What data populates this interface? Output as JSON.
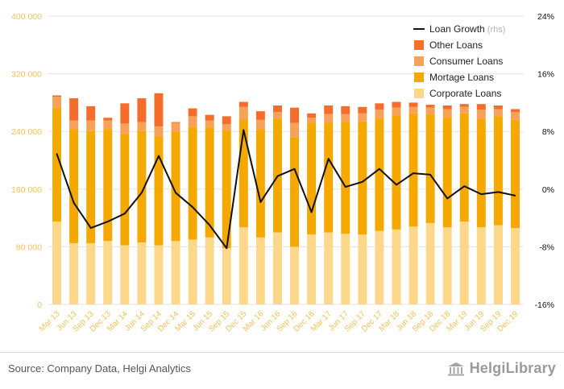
{
  "chart_data": {
    "type": "bar",
    "stacked": true,
    "categories": [
      "Mar 13",
      "Jun 13",
      "Sep 13",
      "Dec 13",
      "Mar 14",
      "Jun 14",
      "Sep 14",
      "Dec 14",
      "Mar 15",
      "Jun 15",
      "Sep 15",
      "Dec 15",
      "Mar 16",
      "Jun 16",
      "Sep 16",
      "Dec 16",
      "Mar 17",
      "Jun 17",
      "Sep 17",
      "Dec 17",
      "Mar 18",
      "Jun 18",
      "Sep 18",
      "Dec 18",
      "Mar 19",
      "Jun 19",
      "Sep 19",
      "Dec 19"
    ],
    "series": [
      {
        "name": "Corporate Loans",
        "color": "#fdd78a",
        "values": [
          115000,
          85000,
          85000,
          88000,
          82000,
          86000,
          82000,
          88000,
          90000,
          93000,
          78000,
          107000,
          93000,
          100000,
          80000,
          97000,
          100000,
          98000,
          97000,
          102000,
          104000,
          108000,
          113000,
          107000,
          115000,
          107000,
          110000,
          106000
        ]
      },
      {
        "name": "Mortage Loans",
        "color": "#f5a800",
        "values": [
          158000,
          158000,
          156000,
          155000,
          155000,
          155000,
          151000,
          152000,
          156000,
          153000,
          164000,
          150000,
          150000,
          157000,
          152000,
          155000,
          152000,
          155000,
          157000,
          156000,
          158000,
          157000,
          151000,
          153000,
          150000,
          150000,
          151000,
          150000
        ]
      },
      {
        "name": "Consumer Loans",
        "color": "#f7a25a",
        "values": [
          15000,
          12000,
          14000,
          12000,
          14000,
          12000,
          14000,
          12000,
          15000,
          9000,
          8000,
          17000,
          13000,
          10000,
          20000,
          7000,
          12000,
          11000,
          11000,
          12000,
          11000,
          9000,
          9000,
          11000,
          9000,
          13000,
          10000,
          11000
        ]
      },
      {
        "name": "Other Loans",
        "color": "#f46d2b",
        "values": [
          2000,
          31000,
          20000,
          4000,
          28000,
          33000,
          46000,
          1000,
          11000,
          8000,
          11000,
          7000,
          12000,
          9000,
          21000,
          6000,
          12000,
          11000,
          9000,
          9000,
          8000,
          6000,
          4000,
          5000,
          4000,
          8000,
          5000,
          4000
        ]
      }
    ],
    "line": {
      "name": "Loan Growth",
      "suffix": "(rhs)",
      "color": "#111111",
      "values": [
        4.9,
        -1.9,
        -5.4,
        -4.5,
        -3.4,
        -0.5,
        4.6,
        -0.5,
        -2.5,
        -5.0,
        -8.2,
        8.2,
        -1.8,
        1.8,
        2.8,
        -3.2,
        4.2,
        0.3,
        1.0,
        2.8,
        0.6,
        2.2,
        2.0,
        -1.3,
        0.4,
        -0.7,
        -0.4,
        -0.9
      ]
    },
    "yleft": {
      "ticks": [
        "0",
        "80 000",
        "160 000",
        "240 000",
        "320 000",
        "400 000"
      ],
      "range": [
        0,
        400000
      ]
    },
    "yright": {
      "ticks": [
        "-16%",
        "-8%",
        "0%",
        "8%",
        "16%",
        "24%"
      ],
      "range": [
        -16,
        24
      ]
    },
    "legend": [
      "Loan Growth",
      "Other Loans",
      "Consumer Loans",
      "Mortage Loans",
      "Corporate Loans"
    ],
    "legend_position": "top-right",
    "grid": true
  },
  "footer": {
    "source": "Source: Company Data, Helgi Analytics",
    "brand": "HelgiLibrary"
  }
}
